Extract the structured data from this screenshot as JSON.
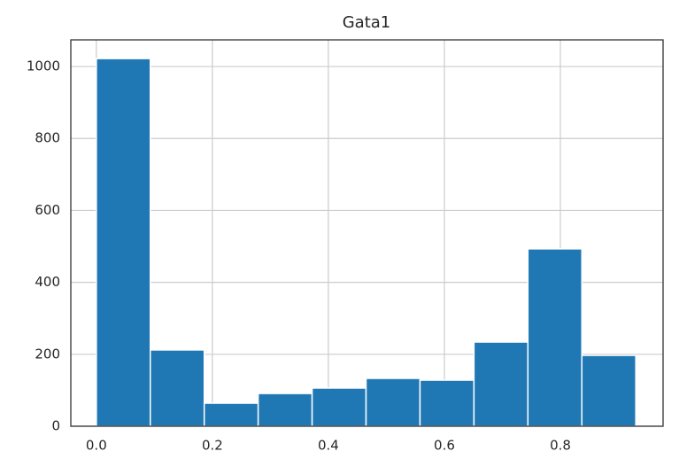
{
  "chart_data": {
    "type": "histogram",
    "title": "Gata1",
    "bins": [
      0,
      0.093,
      0.186,
      0.279,
      0.372,
      0.465,
      0.558,
      0.651,
      0.744,
      0.837,
      0.93
    ],
    "values": [
      1022,
      212,
      64,
      91,
      106,
      133,
      128,
      234,
      493,
      197
    ],
    "color": "#1f77b4",
    "xlim": [
      -0.044,
      0.977
    ],
    "ylim": [
      0,
      1074
    ],
    "xticks": [
      {
        "value": 0,
        "label": "0.0"
      },
      {
        "value": 0.2,
        "label": "0.2"
      },
      {
        "value": 0.4,
        "label": "0.4"
      },
      {
        "value": 0.6,
        "label": "0.6"
      },
      {
        "value": 0.8,
        "label": "0.8"
      }
    ],
    "yticks": [
      0,
      200,
      400,
      600,
      800,
      1000
    ],
    "grid": true
  }
}
